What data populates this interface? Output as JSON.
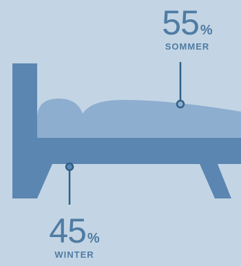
{
  "summer": {
    "value": "55",
    "unit": "%",
    "label": "SOMMER"
  },
  "winter": {
    "value": "45",
    "unit": "%",
    "label": "WINTER"
  },
  "colors": {
    "background": "#c3d5e4",
    "bed": "#5b86b2",
    "duvet": "#8eaed0",
    "text": "#4f7ba3",
    "line": "#2f5f86"
  }
}
